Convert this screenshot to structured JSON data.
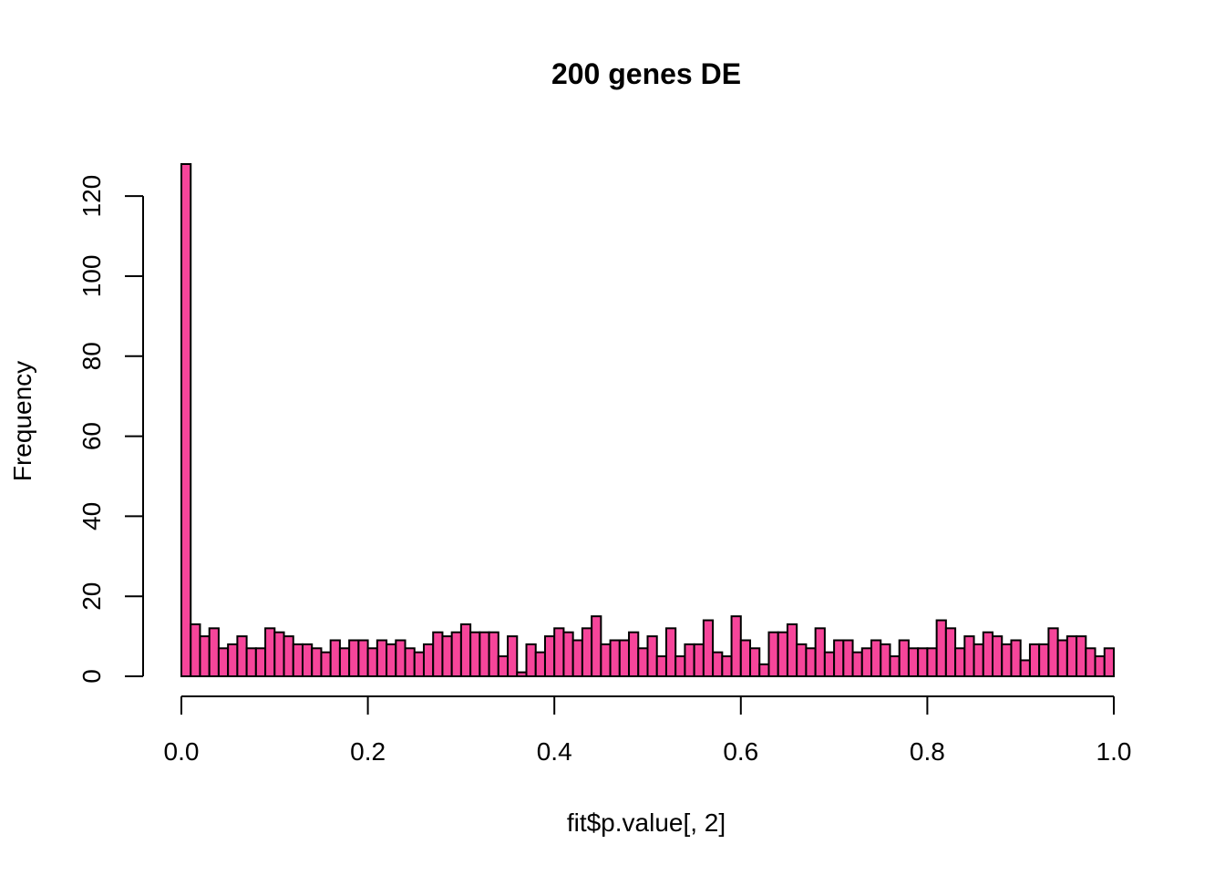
{
  "chart_data": {
    "type": "bar",
    "title": "200 genes DE",
    "xlabel": "fit$p.value[, 2]",
    "ylabel": "Frequency",
    "bin_width": 0.01,
    "x_range": [
      0,
      1
    ],
    "xlim": [
      0,
      1
    ],
    "ylim": [
      0,
      128
    ],
    "x_ticks": [
      0,
      0.2,
      0.4,
      0.6,
      0.8,
      1.0
    ],
    "x_tick_labels": [
      "0.0",
      "0.2",
      "0.4",
      "0.6",
      "0.8",
      "1.0"
    ],
    "y_ticks": [
      0,
      20,
      40,
      60,
      80,
      100,
      120
    ],
    "y_tick_labels": [
      "0",
      "20",
      "40",
      "60",
      "80",
      "100",
      "120"
    ],
    "bar_color": "#f6459a",
    "grid": false,
    "values": [
      128,
      13,
      10,
      12,
      7,
      8,
      10,
      7,
      7,
      12,
      11,
      10,
      8,
      8,
      7,
      6,
      9,
      7,
      9,
      9,
      7,
      9,
      8,
      9,
      7,
      6,
      8,
      11,
      10,
      11,
      13,
      11,
      11,
      11,
      5,
      10,
      1,
      8,
      6,
      10,
      12,
      11,
      9,
      12,
      15,
      8,
      9,
      9,
      11,
      7,
      10,
      5,
      12,
      5,
      8,
      8,
      14,
      6,
      5,
      15,
      9,
      7,
      3,
      11,
      11,
      13,
      8,
      7,
      12,
      6,
      9,
      9,
      6,
      7,
      9,
      8,
      5,
      9,
      7,
      7,
      7,
      14,
      12,
      7,
      10,
      8,
      11,
      10,
      8,
      9,
      4,
      8,
      8,
      12,
      9,
      10,
      10,
      7,
      5,
      7
    ]
  }
}
